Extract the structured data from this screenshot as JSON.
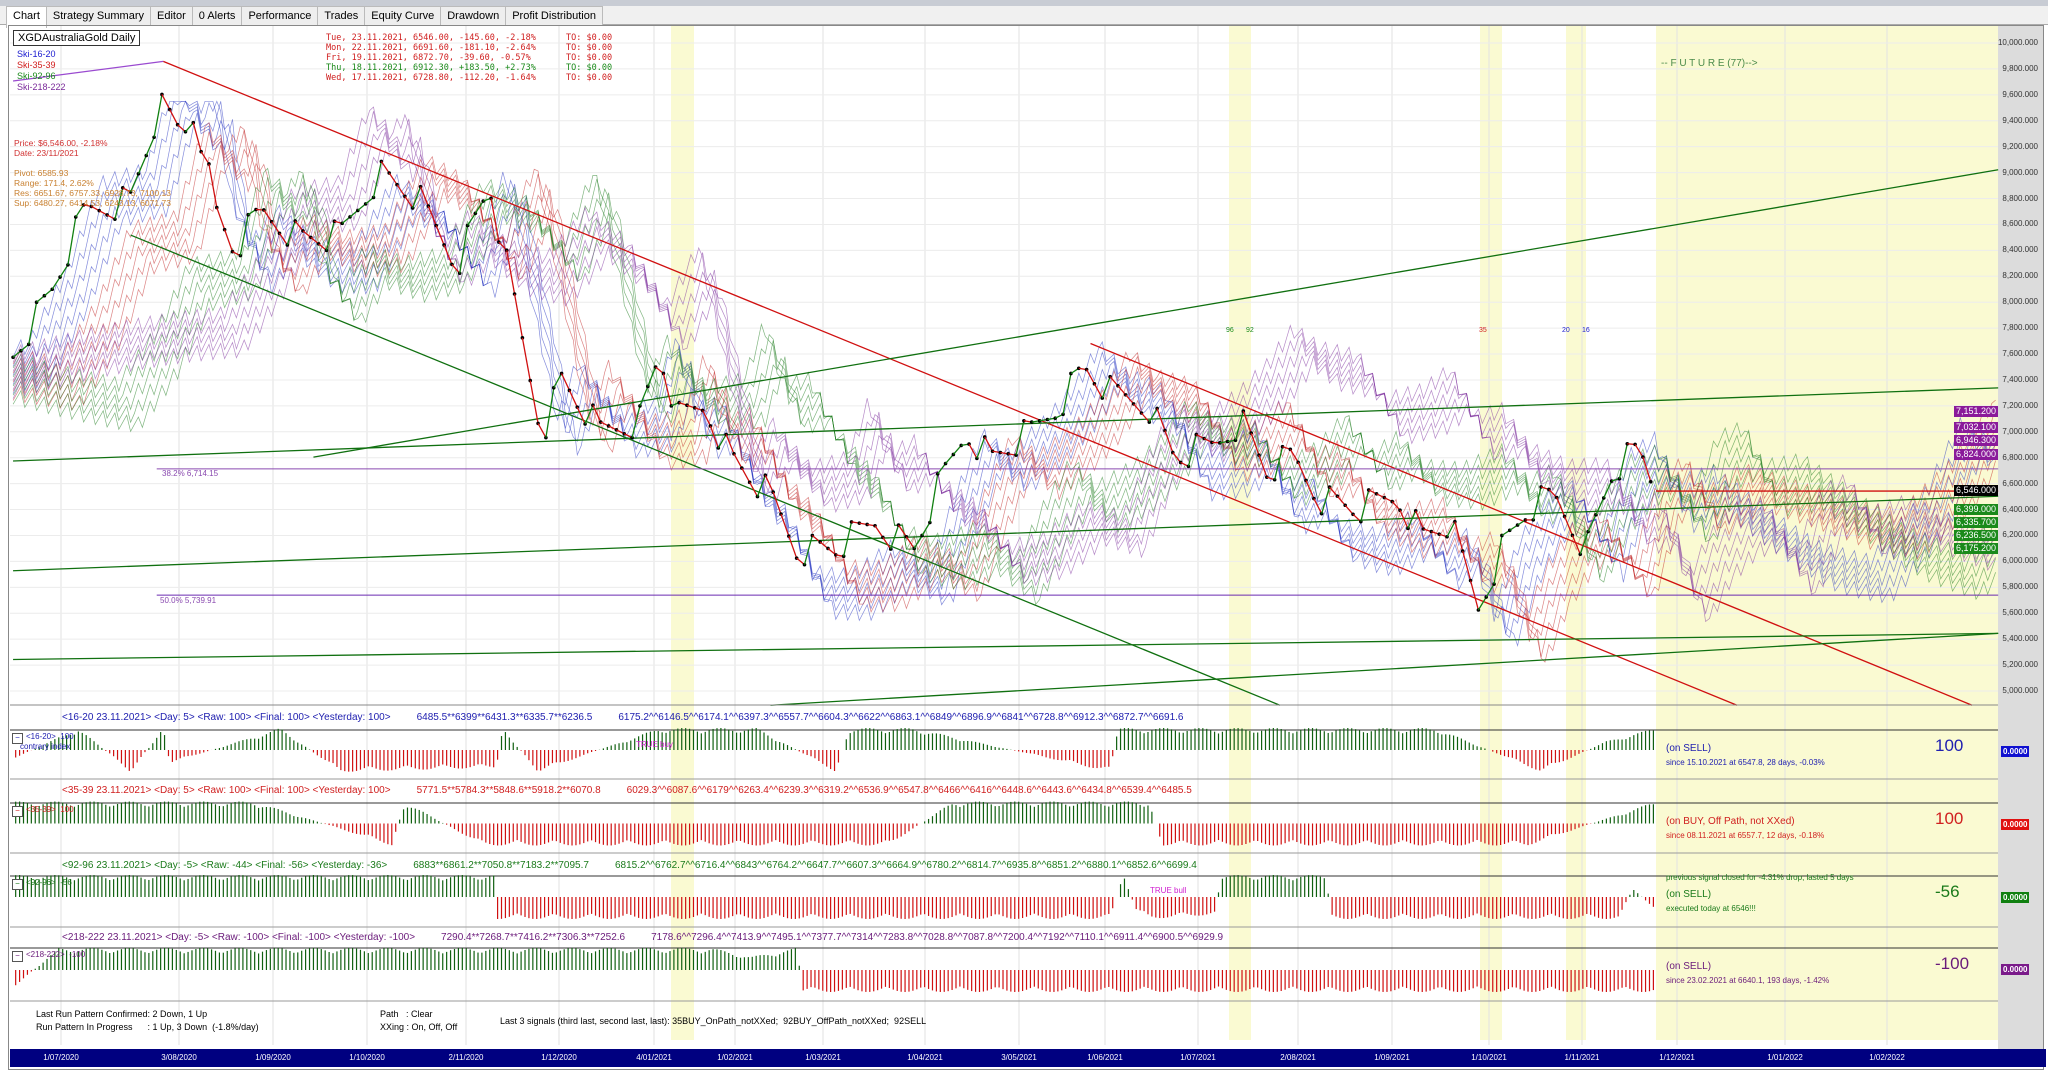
{
  "tabs": [
    "Chart",
    "Strategy Summary",
    "Editor",
    "0 Alerts",
    "Performance",
    "Trades",
    "Equity Curve",
    "Drawdown",
    "Profit Distribution"
  ],
  "active_tab": "Chart",
  "symbol": "XGDAustraliaGold Daily",
  "legend": [
    {
      "label": "Ski-16-20",
      "color": "#1a1ad0"
    },
    {
      "label": "Ski-35-39",
      "color": "#d01a1a"
    },
    {
      "label": "Ski-92-96",
      "color": "#1a8a1a"
    },
    {
      "label": "Ski-218-222",
      "color": "#7a2a9a"
    }
  ],
  "quotes": [
    {
      "day": "Tue, 23.11.2021, 6546.00, -145.60, -2.18%",
      "to": "TO: $0.00",
      "color": "#d02020"
    },
    {
      "day": "Mon, 22.11.2021, 6691.60, -181.10, -2.64%",
      "to": "TO: $0.00",
      "color": "#d02020"
    },
    {
      "day": "Fri, 19.11.2021, 6872.70, -39.60, -0.57%",
      "to": "TO: $0.00",
      "color": "#d02020"
    },
    {
      "day": "Thu, 18.11.2021, 6912.30, +183.50, +2.73%",
      "to": "TO: $0.00",
      "color": "#1a8a1a"
    },
    {
      "day": "Wed, 17.11.2021, 6728.80, -112.20, -1.64%",
      "to": "TO: $0.00",
      "color": "#d02020"
    }
  ],
  "price_info": {
    "price": "Price: $6,546.00, -2.18%",
    "date": "Date: 23/11/2021"
  },
  "pivot_info": {
    "pivot": "Pivot: 6585.93",
    "range": "Range: 171.4, 2.62%",
    "res": "Res: 6651.67, 6757.33, 6928.73, 7100.13",
    "sup": "Sup: 6480.27, 6414.53, 6243.13, 6071.73"
  },
  "future_label": "-- F U T U R E (77)-->",
  "fib": {
    "f382": "38.2% 6,714.15",
    "f50": "50.0% 5,739.91"
  },
  "marker_labels": {
    "m1": "96",
    "m2": "92",
    "m3": "35",
    "m4": "20",
    "m5": "16"
  },
  "chart_data": {
    "type": "line",
    "title": "XGDAustraliaGold Daily",
    "ylim": [
      5000,
      10000
    ],
    "y_ticks": [
      "10,000.000",
      "9,800.000",
      "9,600.000",
      "9,400.000",
      "9,200.000",
      "9,000.000",
      "8,800.000",
      "8,600.000",
      "8,400.000",
      "8,200.000",
      "8,000.000",
      "7,800.000",
      "7,600.000",
      "7,400.000",
      "7,200.000",
      "7,000.000",
      "6,800.000",
      "6,600.000",
      "6,400.000",
      "6,200.000",
      "6,000.000",
      "5,800.000",
      "5,600.000",
      "5,400.000",
      "5,200.000",
      "5,000.000"
    ],
    "x_ticks": [
      "1/07/2020",
      "3/08/2020",
      "1/09/2020",
      "1/10/2020",
      "2/11/2020",
      "1/12/2020",
      "4/01/2021",
      "1/02/2021",
      "1/03/2021",
      "1/04/2021",
      "3/05/2021",
      "1/06/2021",
      "1/07/2021",
      "2/08/2021",
      "1/09/2021",
      "1/10/2021",
      "1/11/2021",
      "1/12/2021",
      "1/01/2022",
      "1/02/2022"
    ],
    "series": [
      {
        "name": "Close",
        "last_values": [
          {
            "date": "17.11.2021",
            "close": 6728.8
          },
          {
            "date": "18.11.2021",
            "close": 6912.3
          },
          {
            "date": "19.11.2021",
            "close": 6872.7
          },
          {
            "date": "22.11.2021",
            "close": 6691.6
          },
          {
            "date": "23.11.2021",
            "close": 6546.0
          }
        ]
      }
    ],
    "price_tags": [
      {
        "value": "7,151.200",
        "color": "#8a1a9a"
      },
      {
        "value": "7,032.100",
        "color": "#8a1a9a"
      },
      {
        "value": "6,946.300",
        "color": "#8a1a9a"
      },
      {
        "value": "6,824.000",
        "color": "#8a1a9a"
      },
      {
        "value": "6,546.000",
        "color": "#000000"
      },
      {
        "value": "6,399.000",
        "color": "#1a8a1a"
      },
      {
        "value": "6,335.700",
        "color": "#1a8a1a"
      },
      {
        "value": "6,236.500",
        "color": "#1a8a1a"
      },
      {
        "value": "6,175.200",
        "color": "#1a8a1a"
      }
    ]
  },
  "panels": [
    {
      "header": "<16-20  23.11.2021>  <Day: 5>  <Raw: 100>  <Final: 100>  <Yesterday: 100>",
      "seq1": "6485.5**6399**6431.3**6335.7**6236.5",
      "seq2": "6175.2^^6146.5^^6174.1^^6397.3^^6557.7^^6604.3^^6622^^6863.1^^6849^^6896.9^^6841^^6728.8^^6912.3^^6872.7^^6691.6",
      "tag": "<16-20>  100",
      "sub": "contrary index",
      "status": "(on SELL)",
      "since": "since 15.10.2021 at 6547.8, 28 days, -0.03%",
      "pre": "",
      "value": "100",
      "badge": "0.0000",
      "color": "#2020b0",
      "badge_color": "#1010d0",
      "signal": "TRUE buy"
    },
    {
      "header": "<35-39  23.11.2021>  <Day: 5>  <Raw: 100>  <Final: 100>  <Yesterday: 100>",
      "seq1": "5771.5**5784.3**5848.6**5918.2**6070.8",
      "seq2": "6029.3^^6087.6^^6179^^6263.4^^6239.3^^6319.2^^6536.9^^6547.8^^6466^^6416^^6448.6^^6443.6^^6434.8^^6539.4^^6485.5",
      "tag": "<35-39>  100",
      "sub": "",
      "status": "(on BUY, Off Path, not XXed)",
      "since": "since 08.11.2021 at 6557.7, 12 days, -0.18%",
      "pre": "",
      "value": "100",
      "badge": "0.0000",
      "color": "#d02020",
      "badge_color": "#e01010",
      "signal": ""
    },
    {
      "header": "<92-96  23.11.2021>  <Day: -5>  <Raw: -44>  <Final: -56>  <Yesterday: -36>",
      "seq1": "6883**6861.2**7050.8**7183.2**7095.7",
      "seq2": "6815.2^^6762.7^^6716.4^^6843^^6764.2^^6647.7^^6607.3^^6664.9^^6780.2^^6814.7^^6935.8^^6851.2^^6880.1^^6852.6^^6699.4",
      "tag": "<92-96>  -56",
      "sub": "",
      "status": "(on SELL)",
      "since": "executed today at 6546!!!",
      "pre": "previous signal closed for -4.31% drop, lasted 5 days",
      "value": "-56",
      "badge": "0.0000",
      "color": "#1a7a1a",
      "badge_color": "#108010",
      "signal": "TRUE bull"
    },
    {
      "header": "<218-222  23.11.2021>  <Day: -5>  <Raw: -100>  <Final: -100>  <Yesterday: -100>",
      "seq1": "7290.4**7268.7**7416.2**7306.3**7252.6",
      "seq2": "7178.6^^7296.4^^7413.9^^7495.1^^7377.7^^7314^^7283.8^^7028.8^^7087.8^^7200.4^^7192^^7110.1^^6911.4^^6900.5^^6929.9",
      "tag": "<218-222>  -100",
      "sub": "",
      "status": "(on SELL)",
      "since": "since 23.02.2021 at 6640.1, 193 days, -1.42%",
      "pre": "",
      "value": "-100",
      "badge": "0.0000",
      "color": "#6a1a7a",
      "badge_color": "#7a1a8a",
      "signal": ""
    }
  ],
  "footer": {
    "last_run": "Last Run Pattern Confirmed: 2 Down, 1 Up",
    "in_progress": "Run Pattern In Progress      : 1 Up, 3 Down  (-1.8%/day)",
    "path": "Path   : Clear",
    "xxing": "XXing : On, Off, Off",
    "signals": "Last 3 signals (third last, second last, last): 35BUY_OnPath_notXXed;  92BUY_OffPath_notXXed;  92SELL"
  }
}
